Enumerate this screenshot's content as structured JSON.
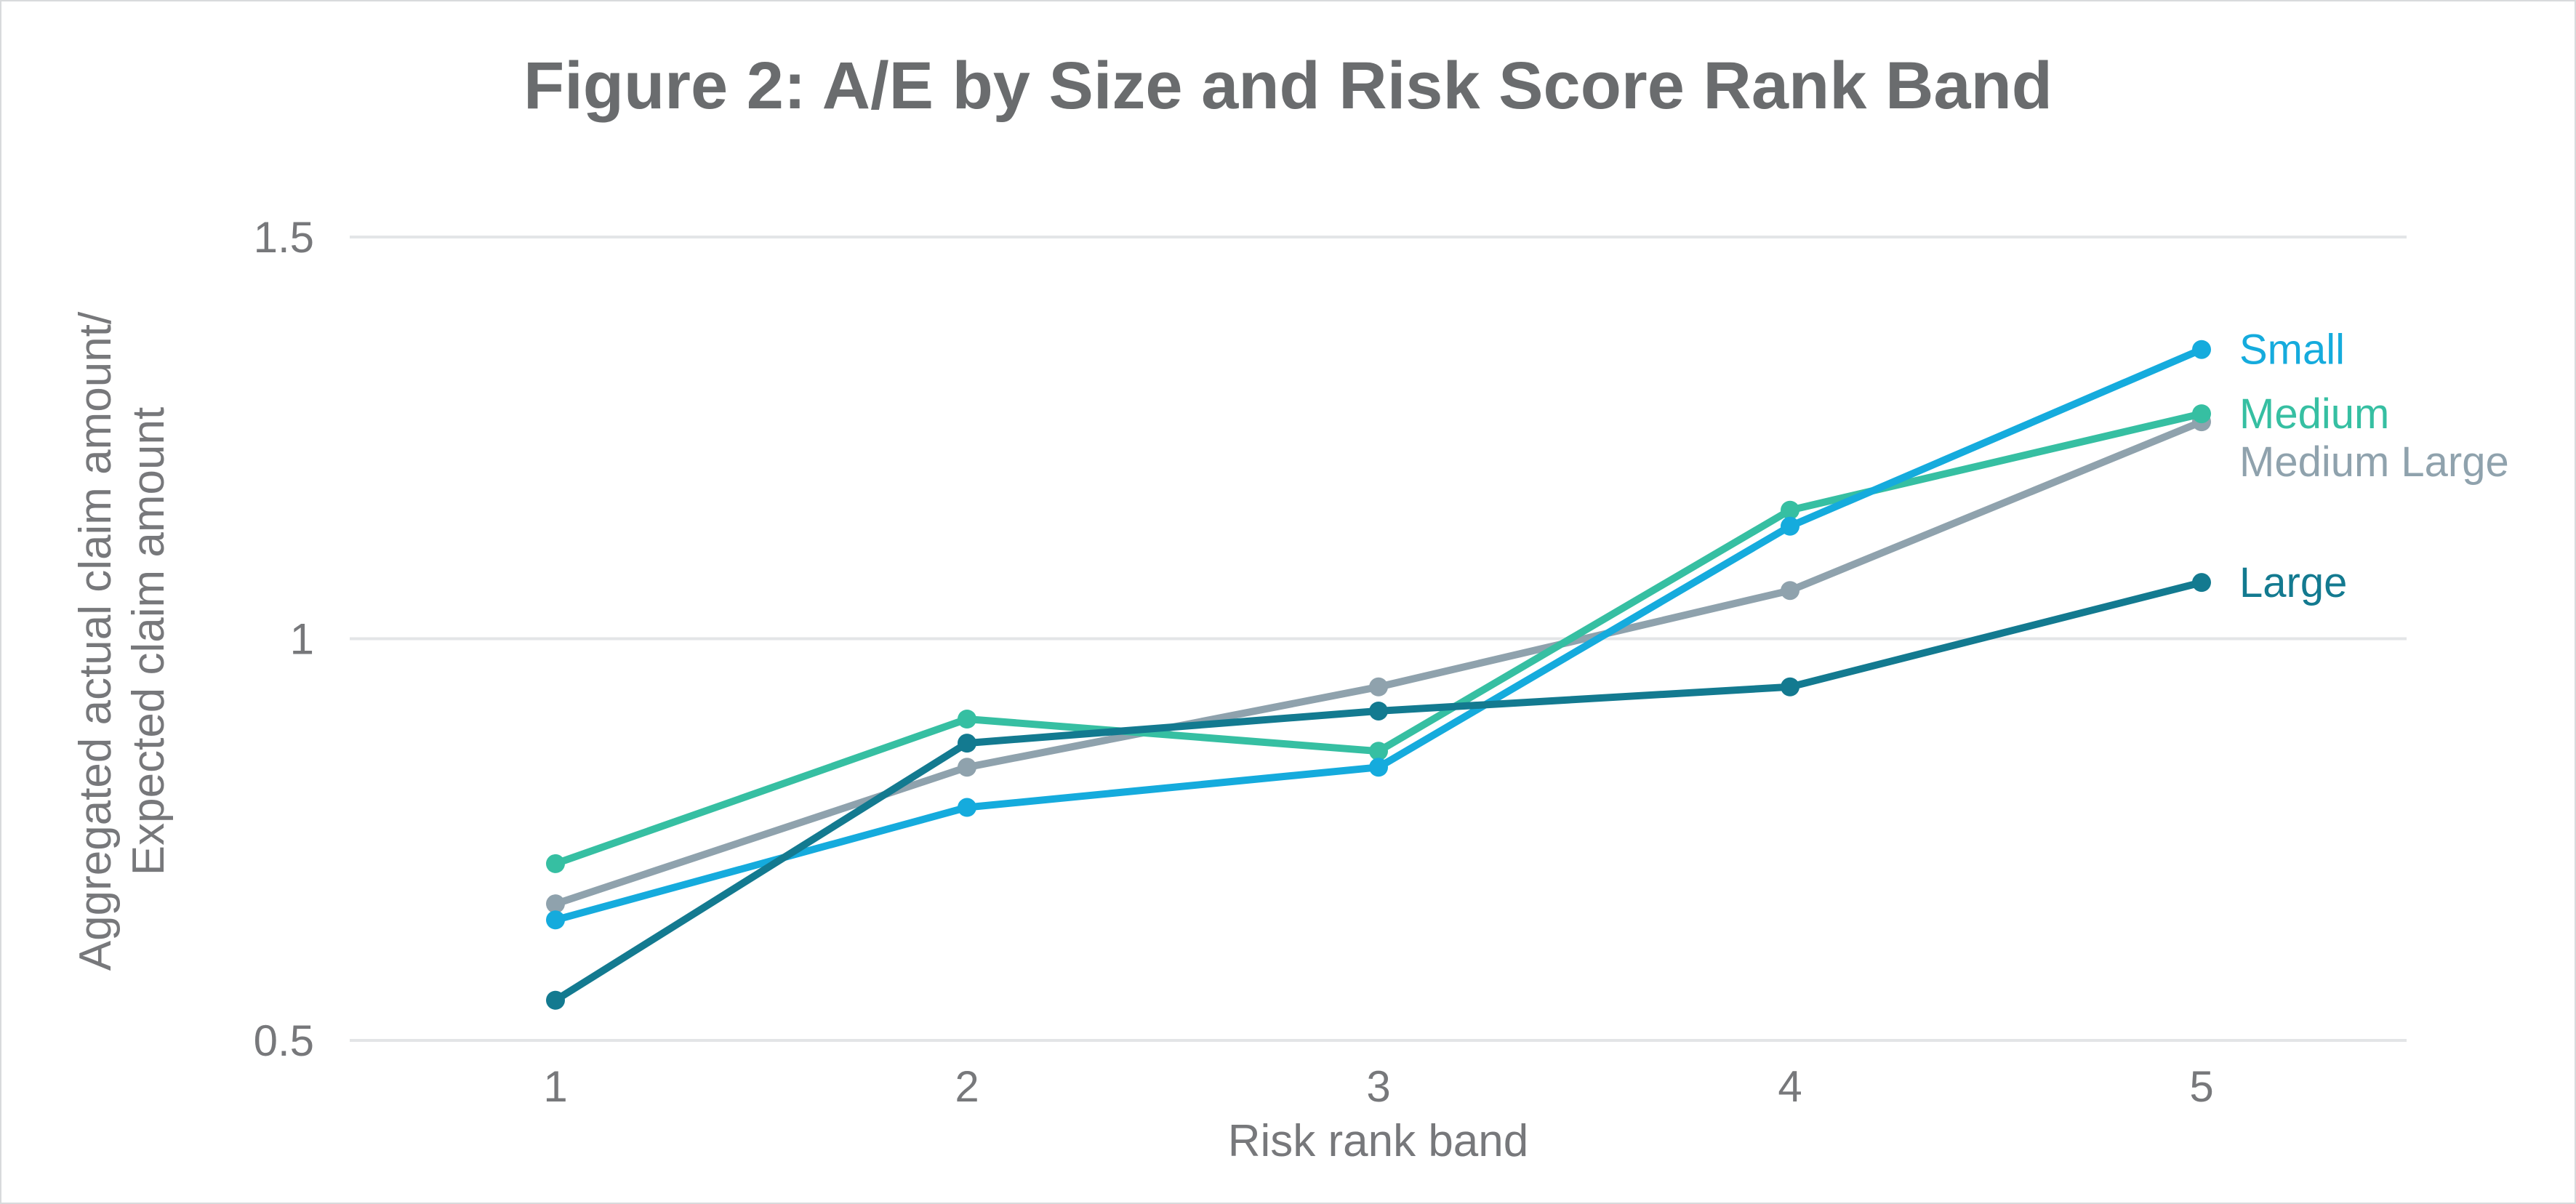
{
  "style": {
    "background": "#ffffff",
    "border_color": "#d8dadc",
    "title_color": "#6a6c6e",
    "axis_text_color": "#77787b",
    "grid_color": "#e3e5e7"
  },
  "chart_data": {
    "type": "line",
    "title": "Figure 2: A/E by Size and Risk Score Rank Band",
    "xlabel": "Risk rank band",
    "ylabel": "Aggregated actual claim amount/ Expected claim amount",
    "ylabel_lines": [
      "Aggregated actual claim amount/",
      "Expected claim amount"
    ],
    "categories": [
      1,
      2,
      3,
      4,
      5
    ],
    "x_tick_labels": [
      "1",
      "2",
      "3",
      "4",
      "5"
    ],
    "y_ticks": [
      0.5,
      1,
      1.5
    ],
    "y_tick_labels": [
      "0.5",
      "1",
      "1.5"
    ],
    "ylim": [
      0.5,
      1.5
    ],
    "grid": "horizontal-only",
    "legend_position": "line-end-labels-right",
    "marker": "filled-circle",
    "series": [
      {
        "name": "Small",
        "color": "#15abdd",
        "values": [
          0.65,
          0.79,
          0.84,
          1.14,
          1.36
        ]
      },
      {
        "name": "Medium",
        "color": "#36bfa2",
        "values": [
          0.72,
          0.9,
          0.86,
          1.16,
          1.28
        ]
      },
      {
        "name": "Medium Large",
        "color": "#8fa2ad",
        "values": [
          0.67,
          0.84,
          0.94,
          1.06,
          1.27
        ]
      },
      {
        "name": "Large",
        "color": "#137a90",
        "values": [
          0.55,
          0.87,
          0.91,
          0.94,
          1.07
        ]
      }
    ]
  }
}
